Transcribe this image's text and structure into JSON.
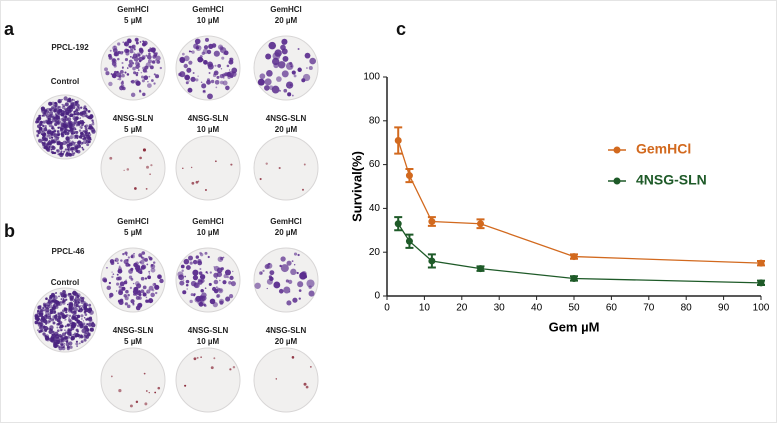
{
  "panel_a": {
    "label": "a",
    "cell_line": "PPCL-192",
    "control": "Control",
    "top": [
      {
        "drug": "GemHCl",
        "dose": "5 µM"
      },
      {
        "drug": "GemHCl",
        "dose": "10 µM"
      },
      {
        "drug": "GemHCl",
        "dose": "20 µM"
      }
    ],
    "bottom": [
      {
        "drug": "4NSG-SLN",
        "dose": "5 µM"
      },
      {
        "drug": "4NSG-SLN",
        "dose": "10 µM"
      },
      {
        "drug": "4NSG-SLN",
        "dose": "20 µM"
      }
    ]
  },
  "panel_b": {
    "label": "b",
    "cell_line": "PPCL-46",
    "control": "Control",
    "top": [
      {
        "drug": "GemHCl",
        "dose": "5 µM"
      },
      {
        "drug": "GemHCl",
        "dose": "10 µM"
      },
      {
        "drug": "GemHCl",
        "dose": "20 µM"
      }
    ],
    "bottom": [
      {
        "drug": "4NSG-SLN",
        "dose": "5 µM"
      },
      {
        "drug": "4NSG-SLN",
        "dose": "10 µM"
      },
      {
        "drug": "4NSG-SLN",
        "dose": "20 µM"
      }
    ]
  },
  "chart_data": {
    "type": "line",
    "panel_label": "c",
    "x_label": "Gem µM",
    "y_label": "Survival(%)",
    "x": [
      3,
      6,
      12,
      25,
      50,
      100
    ],
    "series": [
      {
        "name": "GemHCl",
        "color": "#d2691e",
        "values": [
          71,
          55,
          34,
          33,
          18,
          15
        ],
        "errors": [
          6,
          3,
          2,
          2,
          1,
          1
        ]
      },
      {
        "name": "4NSG-SLN",
        "color": "#1e5a28",
        "values": [
          33,
          25,
          16,
          12.5,
          8,
          6
        ],
        "errors": [
          3,
          3,
          3,
          1,
          1,
          1
        ]
      }
    ],
    "xlim": [
      0,
      100
    ],
    "xticks": [
      0,
      10,
      20,
      30,
      40,
      50,
      60,
      70,
      80,
      90,
      100
    ],
    "ylim": [
      0,
      100
    ],
    "yticks": [
      0,
      20,
      40,
      60,
      80,
      100
    ]
  }
}
